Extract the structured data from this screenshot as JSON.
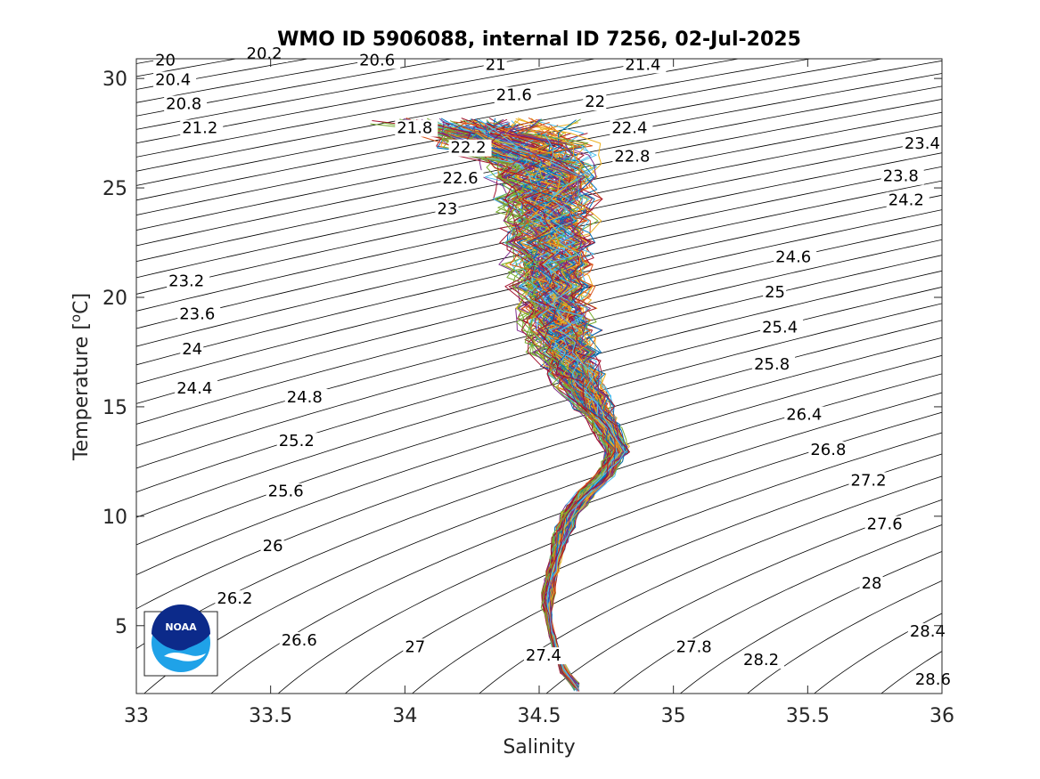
{
  "chart_data": {
    "type": "line",
    "title": "WMO ID 5906088, internal ID 7256, 02-Jul-2025",
    "xlabel": "Salinity",
    "ylabel": "Temperature [°C]",
    "xlim": [
      33,
      36
    ],
    "ylim": [
      1.9,
      30.9
    ],
    "xticks": [
      33,
      33.5,
      34,
      34.5,
      35,
      35.5,
      36
    ],
    "xtick_labels": [
      "33",
      "33.5",
      "34",
      "34.5",
      "35",
      "35.5",
      "36"
    ],
    "yticks": [
      5,
      10,
      15,
      20,
      25,
      30
    ],
    "ytick_labels": [
      "5",
      "10",
      "15",
      "20",
      "25",
      "30"
    ],
    "grid": false,
    "logo": "noaa-logo",
    "isopycnals": {
      "sigma_min": 20.0,
      "sigma_max": 28.6,
      "sigma_step": 0.2,
      "color": "#000000",
      "labels": [
        {
          "text": "20",
          "S": 33.07,
          "T": 30.6
        },
        {
          "text": "20.2",
          "S": 33.41,
          "T": 30.9
        },
        {
          "text": "20.6",
          "S": 33.83,
          "T": 30.6
        },
        {
          "text": "21",
          "S": 34.3,
          "T": 30.4
        },
        {
          "text": "21.4",
          "S": 34.82,
          "T": 30.4
        },
        {
          "text": "20.4",
          "S": 33.07,
          "T": 29.7
        },
        {
          "text": "20.8",
          "S": 33.11,
          "T": 28.6
        },
        {
          "text": "21.6",
          "S": 34.34,
          "T": 29.0
        },
        {
          "text": "22",
          "S": 34.67,
          "T": 28.7
        },
        {
          "text": "21.2",
          "S": 33.17,
          "T": 27.5
        },
        {
          "text": "21.8",
          "S": 33.97,
          "T": 27.5
        },
        {
          "text": "22.4",
          "S": 34.77,
          "T": 27.5
        },
        {
          "text": "22.2",
          "S": 34.17,
          "T": 26.6
        },
        {
          "text": "22.8",
          "S": 34.78,
          "T": 26.2
        },
        {
          "text": "23.4",
          "S": 35.86,
          "T": 26.8
        },
        {
          "text": "22.6",
          "S": 34.14,
          "T": 25.2
        },
        {
          "text": "23.8",
          "S": 35.78,
          "T": 25.3
        },
        {
          "text": "23",
          "S": 34.12,
          "T": 23.8
        },
        {
          "text": "24.2",
          "S": 35.8,
          "T": 24.2
        },
        {
          "text": "24.6",
          "S": 35.38,
          "T": 21.6
        },
        {
          "text": "23.2",
          "S": 33.12,
          "T": 20.5
        },
        {
          "text": "25",
          "S": 35.34,
          "T": 20.0
        },
        {
          "text": "23.6",
          "S": 33.16,
          "T": 19.0
        },
        {
          "text": "25.4",
          "S": 35.33,
          "T": 18.4
        },
        {
          "text": "24",
          "S": 33.17,
          "T": 17.4
        },
        {
          "text": "25.8",
          "S": 35.3,
          "T": 16.7
        },
        {
          "text": "24.4",
          "S": 33.15,
          "T": 15.6
        },
        {
          "text": "24.8",
          "S": 33.56,
          "T": 15.2
        },
        {
          "text": "26.4",
          "S": 35.42,
          "T": 14.4
        },
        {
          "text": "25.2",
          "S": 33.53,
          "T": 13.2
        },
        {
          "text": "26.8",
          "S": 35.51,
          "T": 12.8
        },
        {
          "text": "27.2",
          "S": 35.66,
          "T": 11.4
        },
        {
          "text": "25.6",
          "S": 33.49,
          "T": 10.9
        },
        {
          "text": "27.6",
          "S": 35.72,
          "T": 9.4
        },
        {
          "text": "26",
          "S": 33.47,
          "T": 8.4
        },
        {
          "text": "28",
          "S": 35.7,
          "T": 6.7
        },
        {
          "text": "26.2",
          "S": 33.3,
          "T": 6.0
        },
        {
          "text": "28.4",
          "S": 35.88,
          "T": 4.5
        },
        {
          "text": "26.6",
          "S": 33.54,
          "T": 4.1
        },
        {
          "text": "27",
          "S": 34.0,
          "T": 3.8
        },
        {
          "text": "27.8",
          "S": 35.01,
          "T": 3.8
        },
        {
          "text": "27.4",
          "S": 34.45,
          "T": 3.4
        },
        {
          "text": "28.2",
          "S": 35.26,
          "T": 3.2
        },
        {
          "text": "28.6",
          "S": 35.9,
          "T": 2.3
        }
      ]
    },
    "profiles": {
      "count": 140,
      "mean_profile": {
        "T": [
          2.2,
          3.0,
          4.0,
          5.0,
          6.0,
          7.0,
          8.0,
          9.0,
          10.0,
          11.0,
          12.0,
          13.0,
          14.0,
          15.0,
          16.0,
          17.0,
          18.0,
          19.0,
          20.0,
          21.0,
          22.0,
          23.0,
          24.0,
          25.0,
          26.0,
          27.0,
          28.0
        ],
        "S": [
          34.64,
          34.59,
          34.56,
          34.54,
          34.53,
          34.54,
          34.56,
          34.58,
          34.61,
          34.67,
          34.75,
          34.79,
          34.75,
          34.7,
          34.65,
          34.61,
          34.58,
          34.56,
          34.55,
          34.54,
          34.54,
          34.53,
          34.52,
          34.52,
          34.5,
          34.4,
          34.25
        ]
      },
      "spread_S": [
        0.0,
        0.01,
        0.01,
        0.01,
        0.02,
        0.02,
        0.02,
        0.03,
        0.03,
        0.03,
        0.03,
        0.04,
        0.05,
        0.07,
        0.09,
        0.11,
        0.12,
        0.13,
        0.13,
        0.14,
        0.14,
        0.15,
        0.16,
        0.17,
        0.2,
        0.28,
        0.36
      ],
      "colors": [
        "#0072BD",
        "#D95319",
        "#EDB120",
        "#7E2F8E",
        "#77AC30",
        "#4DBEEE",
        "#A2142F"
      ]
    }
  }
}
